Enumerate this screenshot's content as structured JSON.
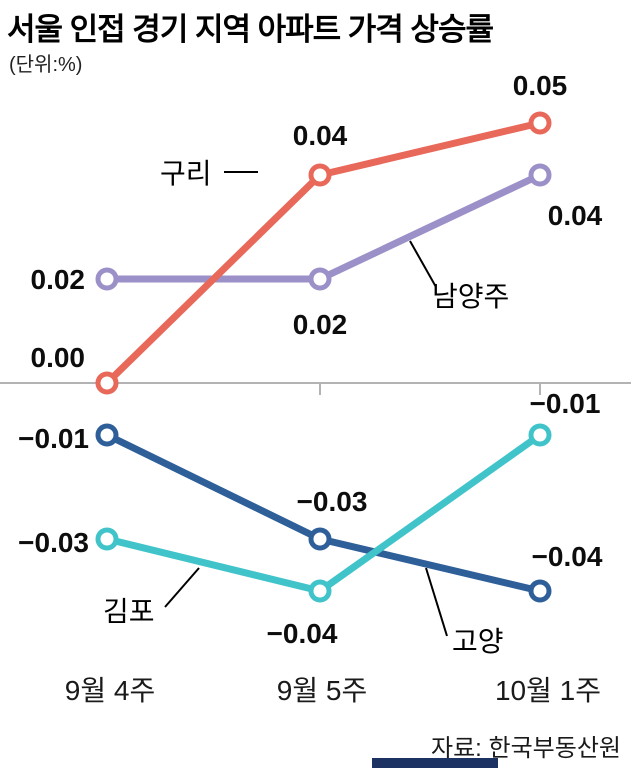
{
  "header": {
    "title": "서울 인접 경기 지역 아파트 가격 상승률",
    "unit_label": "(단위:%)"
  },
  "footer": {
    "source": "자료: 한국부동산원"
  },
  "colors": {
    "guri": "#e8685a",
    "namyangju": "#9c90c8",
    "goyang": "#2e5f99",
    "gimpo": "#40c4ca",
    "axis": "#b3b3b3",
    "callout_line": "#000000",
    "footer_bar": "#1b3263"
  },
  "chart_data": {
    "type": "line",
    "title": "서울 인접 경기 지역 아파트 가격 상승률",
    "unit": "%",
    "categories": [
      "9월 4주",
      "9월 5주",
      "10월 1주"
    ],
    "series": [
      {
        "name": "구리",
        "key": "guri",
        "values": [
          0.0,
          0.04,
          0.05
        ]
      },
      {
        "name": "남양주",
        "key": "namyangju",
        "values": [
          0.02,
          0.02,
          0.04
        ]
      },
      {
        "name": "고양",
        "key": "goyang",
        "values": [
          -0.01,
          -0.03,
          -0.04
        ]
      },
      {
        "name": "김포",
        "key": "gimpo",
        "values": [
          -0.03,
          -0.04,
          -0.01
        ]
      }
    ],
    "ylim": [
      -0.05,
      0.06
    ],
    "grid": false,
    "legend_position": "inline-callouts",
    "source": "자료: 한국부동산원"
  }
}
